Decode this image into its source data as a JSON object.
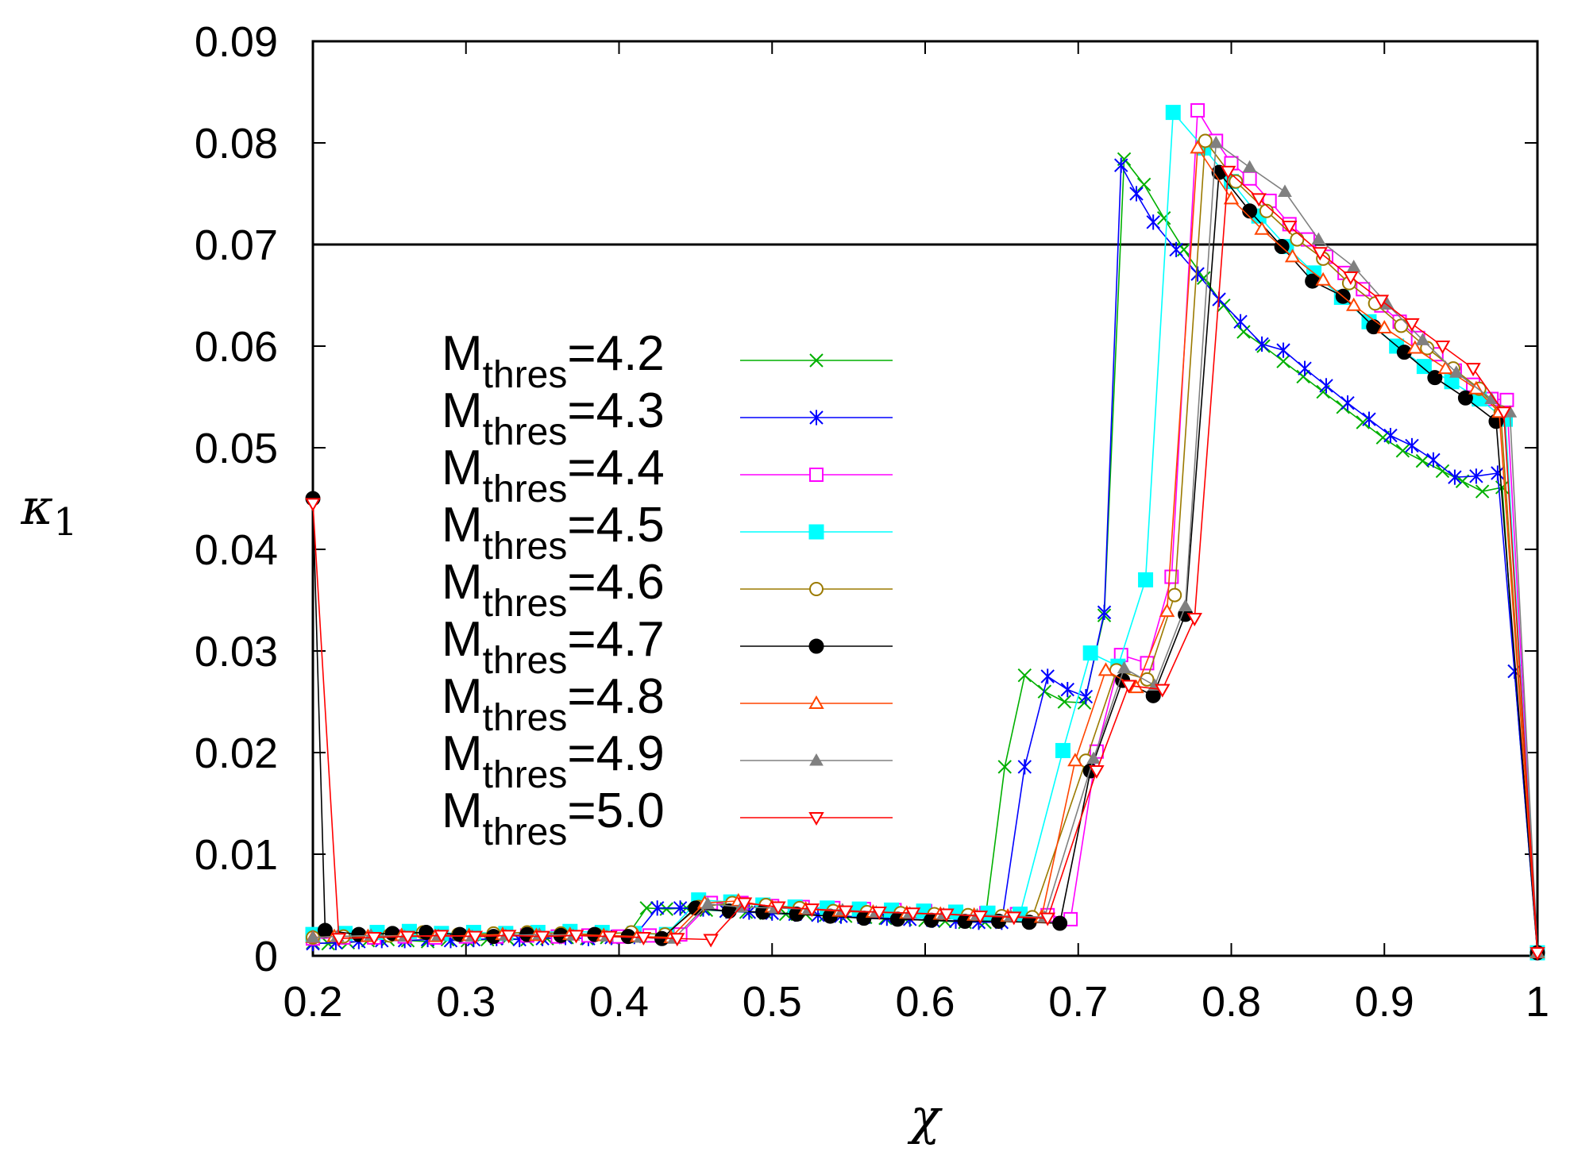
{
  "chart_data": {
    "type": "line",
    "title": "",
    "xlabel": "χ",
    "ylabel_base": "κ",
    "ylabel_sub": "1",
    "xlim": [
      0.2,
      1.0
    ],
    "ylim": [
      0,
      0.09
    ],
    "x_ticks": [
      0.2,
      0.3,
      0.4,
      0.5,
      0.6,
      0.7,
      0.8,
      0.9,
      1.0
    ],
    "x_tick_labels": [
      "0.2",
      "0.3",
      "0.4",
      "0.5",
      "0.6",
      "0.7",
      "0.8",
      "0.9",
      "1"
    ],
    "y_ticks": [
      0,
      0.01,
      0.02,
      0.03,
      0.04,
      0.05,
      0.06,
      0.07,
      0.08,
      0.09
    ],
    "y_tick_labels": [
      "0",
      "0.01",
      "0.02",
      "0.03",
      "0.04",
      "0.05",
      "0.06",
      "0.07",
      "0.08",
      "0.09"
    ],
    "reference_line": {
      "y": 0.07,
      "color": "#000000"
    },
    "legend_placement": "center-left",
    "series": [
      {
        "name_base": "M",
        "name_sub": "thres",
        "name_value": "=4.2",
        "color": "#00b000",
        "marker": "x",
        "x": [
          0.2,
          0.21,
          0.223,
          0.236,
          0.249,
          0.262,
          0.275,
          0.288,
          0.301,
          0.314,
          0.327,
          0.34,
          0.353,
          0.366,
          0.379,
          0.392,
          0.405,
          0.418,
          0.431,
          0.444,
          0.457,
          0.47,
          0.483,
          0.496,
          0.509,
          0.522,
          0.535,
          0.548,
          0.561,
          0.574,
          0.587,
          0.6,
          0.613,
          0.626,
          0.639,
          0.652,
          0.665,
          0.678,
          0.691,
          0.704,
          0.717,
          0.73,
          0.743,
          0.756,
          0.769,
          0.782,
          0.795,
          0.808,
          0.821,
          0.834,
          0.847,
          0.86,
          0.873,
          0.886,
          0.899,
          0.912,
          0.925,
          0.938,
          0.951,
          0.964,
          0.977,
          0.985,
          1.0
        ],
        "y": [
          0.0013,
          0.0012,
          0.0013,
          0.0015,
          0.0016,
          0.0015,
          0.0014,
          0.0016,
          0.0015,
          0.0016,
          0.0017,
          0.0016,
          0.0017,
          0.0018,
          0.0017,
          0.0018,
          0.0019,
          0.0047,
          0.0046,
          0.0047,
          0.0045,
          0.0044,
          0.0043,
          0.0042,
          0.0041,
          0.0041,
          0.004,
          0.0039,
          0.0038,
          0.0037,
          0.0036,
          0.0035,
          0.0034,
          0.0033,
          0.0033,
          0.0186,
          0.0276,
          0.026,
          0.025,
          0.0249,
          0.0335,
          0.0784,
          0.0759,
          0.0726,
          0.0695,
          0.0667,
          0.064,
          0.0614,
          0.06,
          0.0585,
          0.057,
          0.0555,
          0.054,
          0.0525,
          0.051,
          0.0497,
          0.0487,
          0.0477,
          0.0467,
          0.0457,
          0.0461,
          0.028,
          0.0003
        ]
      },
      {
        "name_base": "M",
        "name_sub": "thres",
        "name_value": "=4.3",
        "color": "#0000ff",
        "marker": "asterisk",
        "x": [
          0.2,
          0.215,
          0.23,
          0.245,
          0.26,
          0.275,
          0.29,
          0.305,
          0.32,
          0.335,
          0.35,
          0.365,
          0.38,
          0.395,
          0.41,
          0.425,
          0.44,
          0.455,
          0.47,
          0.485,
          0.5,
          0.515,
          0.53,
          0.545,
          0.56,
          0.575,
          0.59,
          0.605,
          0.62,
          0.635,
          0.65,
          0.665,
          0.68,
          0.693,
          0.705,
          0.717,
          0.728,
          0.738,
          0.749,
          0.764,
          0.778,
          0.792,
          0.806,
          0.82,
          0.834,
          0.848,
          0.862,
          0.876,
          0.89,
          0.904,
          0.918,
          0.932,
          0.946,
          0.96,
          0.974,
          0.985,
          1.0
        ],
        "y": [
          0.0012,
          0.0013,
          0.0014,
          0.0015,
          0.0015,
          0.0016,
          0.0015,
          0.0016,
          0.0017,
          0.0016,
          0.0017,
          0.0018,
          0.0017,
          0.0018,
          0.0019,
          0.0047,
          0.0047,
          0.0046,
          0.0044,
          0.0043,
          0.0042,
          0.0041,
          0.004,
          0.0039,
          0.0038,
          0.0037,
          0.0036,
          0.0035,
          0.0034,
          0.0033,
          0.0033,
          0.0186,
          0.0275,
          0.0262,
          0.0255,
          0.0338,
          0.0778,
          0.075,
          0.0722,
          0.0695,
          0.0671,
          0.0646,
          0.0624,
          0.0602,
          0.0596,
          0.0578,
          0.0561,
          0.0544,
          0.0528,
          0.0512,
          0.0502,
          0.0488,
          0.0471,
          0.0472,
          0.0475,
          0.028,
          0.0003
        ]
      },
      {
        "name_base": "M",
        "name_sub": "thres",
        "name_value": "=4.4",
        "color": "#ff00ff",
        "marker": "square-open",
        "x": [
          0.2,
          0.22,
          0.24,
          0.26,
          0.28,
          0.3,
          0.32,
          0.34,
          0.36,
          0.38,
          0.4,
          0.42,
          0.44,
          0.46,
          0.48,
          0.5,
          0.52,
          0.54,
          0.56,
          0.58,
          0.6,
          0.62,
          0.64,
          0.66,
          0.68,
          0.695,
          0.712,
          0.728,
          0.745,
          0.761,
          0.778,
          0.79,
          0.8,
          0.812,
          0.825,
          0.838,
          0.85,
          0.862,
          0.874,
          0.886,
          0.898,
          0.91,
          0.922,
          0.934,
          0.946,
          0.958,
          0.97,
          0.98,
          1.0
        ],
        "y": [
          0.0017,
          0.0018,
          0.0018,
          0.0019,
          0.0018,
          0.0019,
          0.0019,
          0.002,
          0.0019,
          0.002,
          0.0019,
          0.002,
          0.0021,
          0.0052,
          0.0052,
          0.0049,
          0.0048,
          0.0047,
          0.0046,
          0.0045,
          0.0044,
          0.0043,
          0.0042,
          0.0041,
          0.004,
          0.0036,
          0.0201,
          0.0296,
          0.0288,
          0.0373,
          0.0832,
          0.0802,
          0.078,
          0.0765,
          0.0743,
          0.072,
          0.0705,
          0.0688,
          0.0672,
          0.0656,
          0.064,
          0.0624,
          0.0608,
          0.0592,
          0.0576,
          0.0562,
          0.0548,
          0.0547,
          0.0003
        ]
      },
      {
        "name_base": "M",
        "name_sub": "thres",
        "name_value": "=4.5",
        "color": "#00ffff",
        "marker": "square-filled",
        "x": [
          0.2,
          0.221,
          0.242,
          0.263,
          0.284,
          0.305,
          0.326,
          0.347,
          0.368,
          0.389,
          0.41,
          0.431,
          0.452,
          0.473,
          0.494,
          0.515,
          0.536,
          0.557,
          0.578,
          0.599,
          0.62,
          0.641,
          0.662,
          0.69,
          0.708,
          0.726,
          0.744,
          0.762,
          0.782,
          0.8,
          0.818,
          0.836,
          0.854,
          0.872,
          0.89,
          0.908,
          0.926,
          0.944,
          0.962,
          0.979,
          1.0
        ],
        "y": [
          0.0021,
          0.0022,
          0.0023,
          0.0024,
          0.0022,
          0.0023,
          0.0022,
          0.0023,
          0.0024,
          0.0023,
          0.0022,
          0.0021,
          0.0055,
          0.0053,
          0.005,
          0.0048,
          0.0047,
          0.0046,
          0.0045,
          0.0044,
          0.0043,
          0.0042,
          0.0041,
          0.0202,
          0.0298,
          0.0285,
          0.037,
          0.083,
          0.0795,
          0.0762,
          0.0728,
          0.0698,
          0.0672,
          0.0648,
          0.0624,
          0.06,
          0.058,
          0.0565,
          0.0548,
          0.0528,
          0.0003
        ]
      },
      {
        "name_base": "M",
        "name_sub": "thres",
        "name_value": "=4.6",
        "color": "#9b7a00",
        "marker": "circle-open",
        "x": [
          0.2,
          0.22,
          0.25,
          0.272,
          0.295,
          0.318,
          0.34,
          0.362,
          0.385,
          0.408,
          0.43,
          0.452,
          0.474,
          0.496,
          0.518,
          0.54,
          0.562,
          0.584,
          0.606,
          0.628,
          0.65,
          0.67,
          0.705,
          0.725,
          0.745,
          0.763,
          0.783,
          0.803,
          0.823,
          0.843,
          0.86,
          0.877,
          0.894,
          0.911,
          0.928,
          0.945,
          0.962,
          0.976,
          1.0
        ],
        "y": [
          0.0018,
          0.0019,
          0.002,
          0.0023,
          0.0021,
          0.0022,
          0.0023,
          0.0022,
          0.0021,
          0.0023,
          0.0021,
          0.0048,
          0.0052,
          0.005,
          0.0047,
          0.0044,
          0.0043,
          0.0042,
          0.0041,
          0.004,
          0.0039,
          0.0038,
          0.0192,
          0.0281,
          0.0272,
          0.0355,
          0.0802,
          0.0762,
          0.0733,
          0.0705,
          0.0686,
          0.0662,
          0.0642,
          0.062,
          0.0598,
          0.0578,
          0.0558,
          0.0535,
          0.0003
        ]
      },
      {
        "name_base": "M",
        "name_sub": "thres",
        "name_value": "=4.7",
        "color": "#000000",
        "marker": "circle-filled",
        "x": [
          0.2,
          0.208,
          0.23,
          0.252,
          0.274,
          0.296,
          0.318,
          0.34,
          0.362,
          0.384,
          0.406,
          0.428,
          0.45,
          0.472,
          0.494,
          0.516,
          0.538,
          0.56,
          0.582,
          0.604,
          0.626,
          0.648,
          0.668,
          0.688,
          0.708,
          0.729,
          0.749,
          0.77,
          0.792,
          0.812,
          0.833,
          0.853,
          0.873,
          0.893,
          0.913,
          0.933,
          0.953,
          0.973,
          1.0
        ],
        "y": [
          0.045,
          0.0025,
          0.0021,
          0.0022,
          0.0023,
          0.0021,
          0.0019,
          0.0021,
          0.002,
          0.0021,
          0.0019,
          0.0017,
          0.0047,
          0.0044,
          0.0043,
          0.0041,
          0.0039,
          0.0037,
          0.0036,
          0.0035,
          0.0034,
          0.0034,
          0.0033,
          0.0032,
          0.0182,
          0.0271,
          0.0256,
          0.0336,
          0.0771,
          0.0733,
          0.0698,
          0.0664,
          0.0649,
          0.0619,
          0.0594,
          0.0569,
          0.0549,
          0.0526,
          0.0003
        ]
      },
      {
        "name_base": "M",
        "name_sub": "thres",
        "name_value": "=4.8",
        "color": "#ff4500",
        "marker": "triangle-up-open",
        "x": [
          0.2,
          0.214,
          0.236,
          0.258,
          0.28,
          0.302,
          0.324,
          0.346,
          0.368,
          0.39,
          0.412,
          0.434,
          0.456,
          0.478,
          0.5,
          0.522,
          0.544,
          0.566,
          0.588,
          0.61,
          0.632,
          0.654,
          0.676,
          0.698,
          0.718,
          0.738,
          0.758,
          0.778,
          0.8,
          0.82,
          0.84,
          0.86,
          0.88,
          0.9,
          0.92,
          0.94,
          0.96,
          0.975,
          1.0
        ],
        "y": [
          0.0018,
          0.0019,
          0.0019,
          0.002,
          0.0019,
          0.002,
          0.0021,
          0.002,
          0.0021,
          0.002,
          0.0019,
          0.0018,
          0.0052,
          0.0054,
          0.0048,
          0.0046,
          0.0044,
          0.0043,
          0.0042,
          0.0041,
          0.004,
          0.0039,
          0.0038,
          0.0192,
          0.0281,
          0.0264,
          0.0339,
          0.0795,
          0.0745,
          0.0715,
          0.0688,
          0.0665,
          0.064,
          0.0618,
          0.0598,
          0.0578,
          0.0558,
          0.0535,
          0.0003
        ]
      },
      {
        "name_base": "M",
        "name_sub": "thres",
        "name_value": "=4.9",
        "color": "#808080",
        "marker": "triangle-up-filled",
        "x": [
          0.2,
          0.216,
          0.238,
          0.26,
          0.282,
          0.304,
          0.326,
          0.348,
          0.37,
          0.392,
          0.414,
          0.436,
          0.458,
          0.48,
          0.502,
          0.524,
          0.546,
          0.568,
          0.59,
          0.612,
          0.634,
          0.656,
          0.678,
          0.71,
          0.73,
          0.75,
          0.77,
          0.79,
          0.812,
          0.835,
          0.857,
          0.88,
          0.902,
          0.925,
          0.947,
          0.97,
          0.982,
          1.0
        ],
        "y": [
          0.0018,
          0.0019,
          0.002,
          0.0019,
          0.002,
          0.0019,
          0.002,
          0.0021,
          0.002,
          0.0019,
          0.0018,
          0.0017,
          0.0051,
          0.0048,
          0.0047,
          0.0046,
          0.0045,
          0.0043,
          0.0042,
          0.0041,
          0.004,
          0.0039,
          0.0038,
          0.0194,
          0.0283,
          0.0266,
          0.0344,
          0.08,
          0.0776,
          0.0752,
          0.0705,
          0.0678,
          0.0641,
          0.0606,
          0.0574,
          0.0548,
          0.0535,
          0.0003
        ]
      },
      {
        "name_base": "M",
        "name_sub": "thres",
        "name_value": "=5.0",
        "color": "#ff0000",
        "marker": "triangle-down-open",
        "x": [
          0.2,
          0.217,
          0.24,
          0.262,
          0.284,
          0.306,
          0.328,
          0.35,
          0.372,
          0.394,
          0.416,
          0.438,
          0.46,
          0.482,
          0.504,
          0.526,
          0.548,
          0.57,
          0.592,
          0.614,
          0.636,
          0.658,
          0.68,
          0.712,
          0.733,
          0.755,
          0.776,
          0.798,
          0.818,
          0.838,
          0.858,
          0.878,
          0.898,
          0.918,
          0.938,
          0.958,
          0.978,
          1.0
        ],
        "y": [
          0.0445,
          0.0017,
          0.0018,
          0.0019,
          0.002,
          0.0019,
          0.002,
          0.0019,
          0.002,
          0.0019,
          0.0018,
          0.0017,
          0.0016,
          0.0052,
          0.0048,
          0.0046,
          0.0044,
          0.0043,
          0.0042,
          0.0041,
          0.0039,
          0.0038,
          0.0037,
          0.0182,
          0.0266,
          0.0262,
          0.0332,
          0.0772,
          0.0745,
          0.0718,
          0.0692,
          0.0668,
          0.0645,
          0.0622,
          0.06,
          0.0578,
          0.0535,
          0.0003
        ]
      }
    ]
  }
}
